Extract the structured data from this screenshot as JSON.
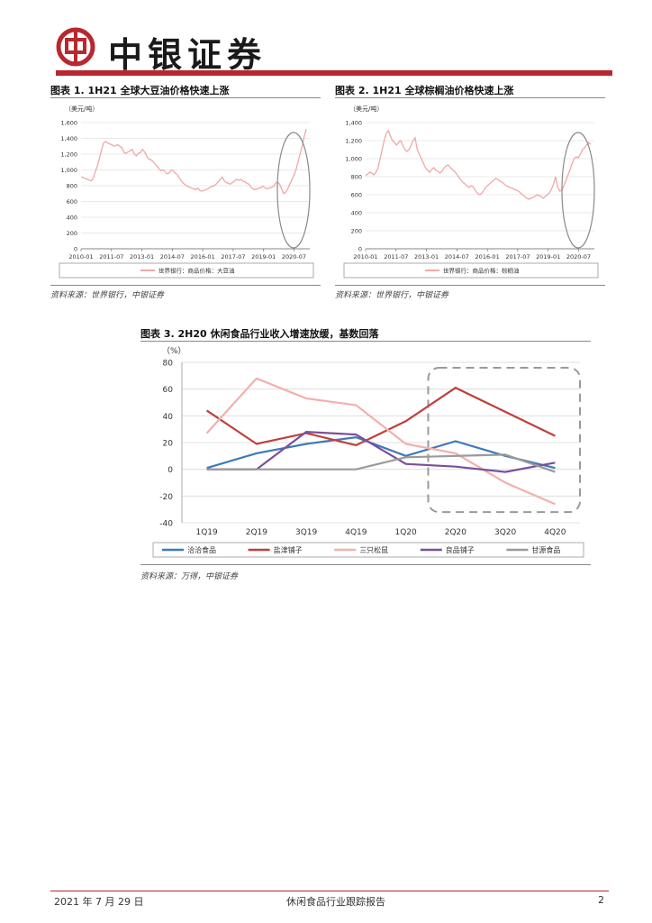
{
  "header": {
    "brand": "中银证券",
    "accent_color": "#b8282e"
  },
  "figures": [
    {
      "title": "图表 1. 1H21 全球大豆油价格快速上涨",
      "source": "资料来源：世界银行，中银证券",
      "unit": "（美元/吨）",
      "chart_data": {
        "type": "line",
        "ylabel": "（美元/吨）",
        "ylim": [
          0,
          1600
        ],
        "yticks": [
          "0",
          "200",
          "400",
          "600",
          "800",
          "1,000",
          "1,200",
          "1,400",
          "1,600"
        ],
        "xticks": [
          "2010-01",
          "2011-07",
          "2013-01",
          "2014-07",
          "2016-01",
          "2017-07",
          "2019-01",
          "2020-07"
        ],
        "series": [
          {
            "name": "世界银行：商品价格：大豆油",
            "color": "#f0a8a8",
            "values": [
              910,
              905,
              890,
              880,
              870,
              860,
              900,
              980,
              1050,
              1150,
              1250,
              1340,
              1360,
              1340,
              1330,
              1320,
              1300,
              1310,
              1320,
              1300,
              1280,
              1220,
              1210,
              1230,
              1240,
              1260,
              1200,
              1180,
              1210,
              1220,
              1260,
              1230,
              1180,
              1140,
              1130,
              1110,
              1080,
              1050,
              1020,
              990,
              1000,
              980,
              950,
              960,
              1000,
              990,
              960,
              940,
              900,
              860,
              830,
              810,
              790,
              780,
              770,
              760,
              750,
              770,
              740,
              730,
              740,
              750,
              760,
              780,
              790,
              800,
              820,
              850,
              880,
              910,
              860,
              840,
              830,
              820,
              840,
              860,
              880,
              870,
              880,
              860,
              850,
              830,
              820,
              780,
              760,
              750,
              760,
              770,
              780,
              790,
              770,
              760,
              770,
              780,
              790,
              830,
              850,
              820,
              760,
              700,
              720,
              760,
              820,
              880,
              930,
              1000,
              1100,
              1200,
              1300,
              1420,
              1520
            ]
          }
        ],
        "annotation": "circle highlighting 2020-07 onward surge"
      }
    },
    {
      "title": "图表 2. 1H21 全球棕榈油价格快速上涨",
      "source": "资料来源：世界银行，中银证券",
      "unit": "（美元/吨）",
      "chart_data": {
        "type": "line",
        "ylabel": "（美元/吨）",
        "ylim": [
          0,
          1400
        ],
        "yticks": [
          "0",
          "200",
          "400",
          "600",
          "800",
          "1,000",
          "1,200",
          "1,400"
        ],
        "xticks": [
          "2010-01",
          "2011-07",
          "2013-01",
          "2014-07",
          "2016-01",
          "2017-07",
          "2019-01",
          "2020-07"
        ],
        "series": [
          {
            "name": "世界银行：商品价格：棕榈油",
            "color": "#f0a8a8",
            "values": [
              810,
              830,
              850,
              840,
              820,
              850,
              900,
              1000,
              1100,
              1200,
              1280,
              1310,
              1250,
              1200,
              1180,
              1150,
              1180,
              1200,
              1150,
              1100,
              1080,
              1100,
              1150,
              1200,
              1230,
              1100,
              1050,
              1000,
              950,
              900,
              870,
              850,
              880,
              900,
              870,
              860,
              840,
              860,
              900,
              920,
              930,
              900,
              880,
              860,
              830,
              800,
              770,
              740,
              720,
              700,
              680,
              700,
              690,
              650,
              620,
              600,
              610,
              640,
              680,
              700,
              720,
              740,
              760,
              780,
              770,
              750,
              740,
              720,
              700,
              690,
              680,
              670,
              660,
              650,
              640,
              620,
              600,
              580,
              560,
              550,
              560,
              570,
              580,
              600,
              590,
              580,
              560,
              580,
              600,
              620,
              660,
              720,
              800,
              680,
              640,
              650,
              700,
              760,
              820,
              880,
              950,
              1000,
              1020,
              1010,
              1050,
              1100,
              1120,
              1150,
              1180,
              1160
            ]
          }
        ],
        "annotation": "circle highlighting 2020-07 onward surge"
      }
    },
    {
      "title": "图表 3. 2H20 休闲食品行业收入增速放缓，基数回落",
      "source": "资料来源：万得，中银证券",
      "unit": "（%）",
      "chart_data": {
        "type": "line",
        "ylabel": "（%）",
        "ylim": [
          -40,
          80
        ],
        "yticks": [
          "-40",
          "-20",
          "0",
          "20",
          "40",
          "60",
          "80"
        ],
        "categories": [
          "1Q19",
          "2Q19",
          "3Q19",
          "4Q19",
          "1Q20",
          "2Q20",
          "3Q20",
          "4Q20"
        ],
        "series": [
          {
            "name": "洽洽食品",
            "color": "#3d7ab8",
            "values": [
              1,
              12,
              19,
              24,
              10,
              21,
              10,
              1
            ]
          },
          {
            "name": "盐津铺子",
            "color": "#c0403c",
            "values": [
              44,
              19,
              27,
              18,
              36,
              61,
              43,
              25
            ]
          },
          {
            "name": "三只松鼠",
            "color": "#f2b0ac",
            "values": [
              27,
              68,
              53,
              48,
              19,
              12,
              -10,
              -26
            ]
          },
          {
            "name": "良品铺子",
            "color": "#7a4f9a",
            "values": [
              0,
              0,
              28,
              26,
              4,
              2,
              -2,
              5
            ]
          },
          {
            "name": "甘源食品",
            "color": "#9a9a9a",
            "values": [
              0,
              0,
              0,
              0,
              9,
              10,
              11,
              -2
            ]
          }
        ],
        "annotation": "dashed box highlighting 2Q20–4Q20"
      }
    }
  ],
  "footer": {
    "date": "2021 年 7 月 29 日",
    "report_title": "休闲食品行业跟踪报告",
    "page_number": "2"
  }
}
